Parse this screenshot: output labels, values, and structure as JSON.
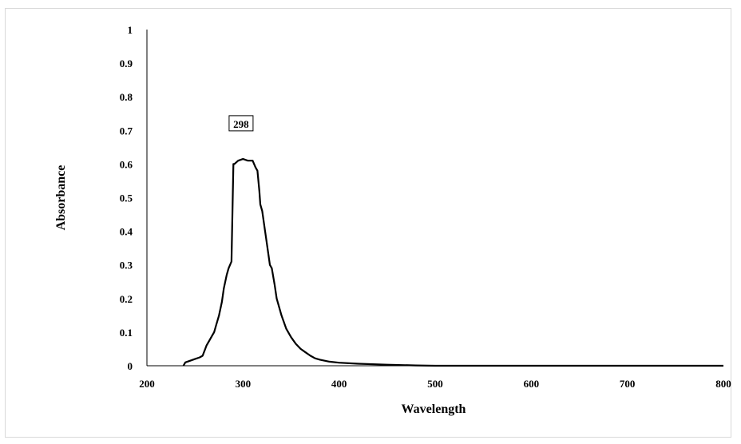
{
  "chart_data": {
    "type": "line",
    "title": "",
    "xlabel": "Wavelength",
    "ylabel": "Absorbance",
    "xlim": [
      200,
      800
    ],
    "ylim": [
      0,
      1
    ],
    "x_ticks": [
      "200",
      "300",
      "400",
      "500",
      "600",
      "700",
      "800"
    ],
    "y_ticks": [
      "0",
      "0.1",
      "0.2",
      "0.3",
      "0.4",
      "0.5",
      "0.6",
      "0.7",
      "0.8",
      "0.9",
      "1"
    ],
    "grid": false,
    "legend": "none",
    "line_color": "#000000",
    "annotation": {
      "text": "298",
      "x": 298,
      "y": 0.72
    },
    "series": [
      {
        "x": [
          238,
          240,
          245,
          250,
          255,
          258,
          260,
          262,
          265,
          268,
          270,
          272,
          275,
          278,
          280,
          283,
          285,
          288,
          290,
          291,
          295,
          300,
          305,
          310,
          313,
          315,
          317,
          318,
          320,
          323,
          325,
          328,
          330,
          333,
          335,
          338,
          340,
          345,
          350,
          355,
          360,
          365,
          370,
          375,
          380,
          390,
          400,
          420,
          450,
          480,
          500,
          550,
          600,
          700,
          800
        ],
        "y": [
          0.0,
          0.01,
          0.015,
          0.02,
          0.025,
          0.03,
          0.045,
          0.06,
          0.075,
          0.09,
          0.1,
          0.12,
          0.15,
          0.19,
          0.23,
          0.27,
          0.29,
          0.31,
          0.6,
          0.6,
          0.61,
          0.615,
          0.61,
          0.61,
          0.59,
          0.58,
          0.52,
          0.48,
          0.46,
          0.4,
          0.36,
          0.3,
          0.29,
          0.24,
          0.2,
          0.17,
          0.15,
          0.11,
          0.085,
          0.065,
          0.05,
          0.04,
          0.03,
          0.022,
          0.018,
          0.012,
          0.009,
          0.006,
          0.003,
          0.001,
          0.0,
          0.0,
          0.0,
          0.0,
          0.0
        ]
      }
    ]
  }
}
